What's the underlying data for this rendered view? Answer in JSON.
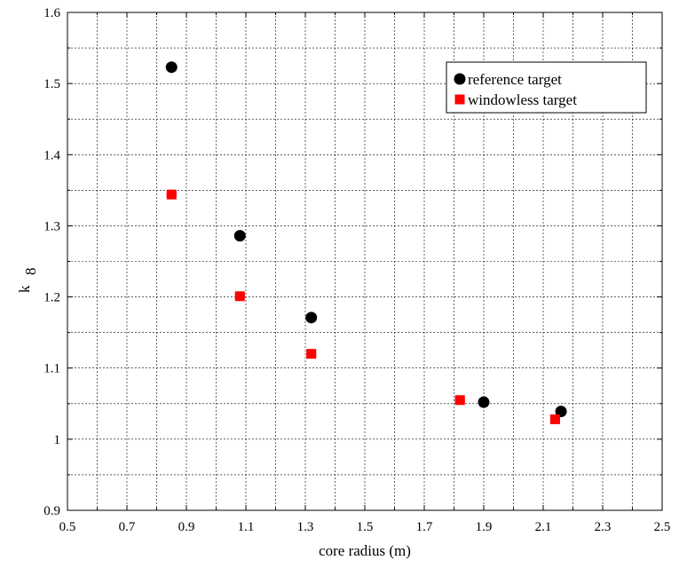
{
  "chart_data": {
    "type": "scatter",
    "xlabel": "core radius (m)",
    "ylabel": "k",
    "ylabel_subscript": "8",
    "xlim": [
      0.5,
      2.5
    ],
    "ylim": [
      0.9,
      1.6
    ],
    "x_ticks": [
      "0.5",
      "0.7",
      "0.9",
      "1.1",
      "1.3",
      "1.5",
      "1.7",
      "1.9",
      "2.1",
      "2.3",
      "2.5"
    ],
    "y_ticks": [
      "0.9",
      "1",
      "1.1",
      "1.2",
      "1.3",
      "1.4",
      "1.5",
      "1.6"
    ],
    "grid": true,
    "legend_position": "top-right",
    "series": [
      {
        "name": "reference target",
        "marker": "circle",
        "color": "#000000",
        "points": [
          {
            "x": 0.85,
            "y": 1.523,
            "xerr": 0.015
          },
          {
            "x": 1.08,
            "y": 1.286,
            "xerr": 0.015
          },
          {
            "x": 1.32,
            "y": 1.171,
            "xerr": 0.015
          },
          {
            "x": 1.9,
            "y": 1.052,
            "xerr": 0.015
          },
          {
            "x": 2.16,
            "y": 1.039,
            "xerr": 0.015
          }
        ]
      },
      {
        "name": "windowless target",
        "marker": "square",
        "color": "#ff0000",
        "points": [
          {
            "x": 0.85,
            "y": 1.344,
            "xerr": 0.015
          },
          {
            "x": 1.08,
            "y": 1.201,
            "xerr": 0.015
          },
          {
            "x": 1.32,
            "y": 1.12,
            "xerr": 0.015
          },
          {
            "x": 1.82,
            "y": 1.055,
            "xerr": 0.015
          },
          {
            "x": 2.14,
            "y": 1.028,
            "xerr": 0.015
          }
        ]
      }
    ]
  }
}
